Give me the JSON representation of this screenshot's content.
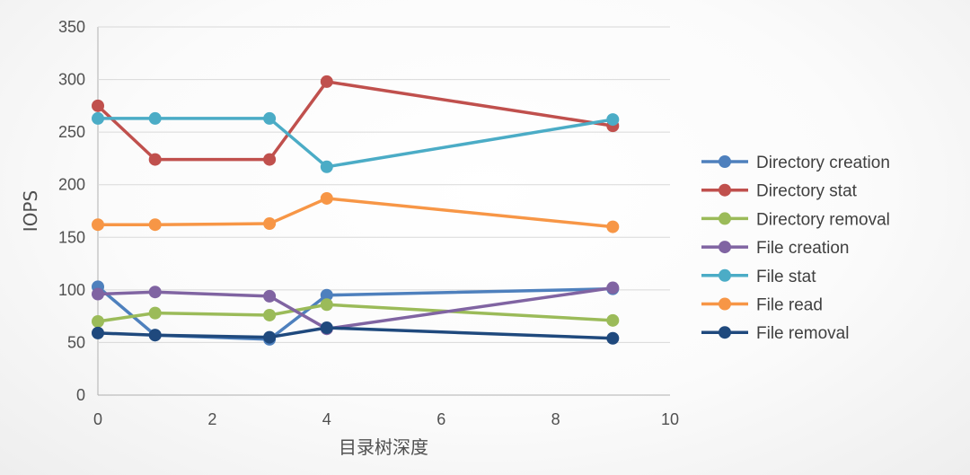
{
  "chart_data": {
    "type": "line",
    "xlabel": "目录树深度",
    "ylabel": "IOPS",
    "xlim": [
      0,
      10
    ],
    "ylim": [
      0,
      350
    ],
    "x_ticks": [
      0,
      2,
      4,
      6,
      8,
      10
    ],
    "y_ticks": [
      0,
      50,
      100,
      150,
      200,
      250,
      300,
      350
    ],
    "grid": "horizontal",
    "legend_position": "right",
    "x": [
      0,
      1,
      3,
      4,
      9
    ],
    "series": [
      {
        "name": "Directory creation",
        "color": "#4e80bd",
        "values": [
          103,
          57,
          53,
          95,
          101
        ]
      },
      {
        "name": "Directory stat",
        "color": "#c0504d",
        "values": [
          275,
          224,
          224,
          298,
          256
        ]
      },
      {
        "name": "Directory removal",
        "color": "#9bbb59",
        "values": [
          70,
          78,
          76,
          86,
          71
        ]
      },
      {
        "name": "File creation",
        "color": "#8064a2",
        "values": [
          96,
          98,
          94,
          63,
          102
        ]
      },
      {
        "name": "File stat",
        "color": "#4bacc6",
        "values": [
          263,
          263,
          263,
          217,
          262
        ]
      },
      {
        "name": "File read",
        "color": "#f79646",
        "values": [
          162,
          162,
          163,
          187,
          160
        ]
      },
      {
        "name": "File removal",
        "color": "#1f497d",
        "values": [
          59,
          57,
          55,
          64,
          54
        ]
      }
    ]
  }
}
